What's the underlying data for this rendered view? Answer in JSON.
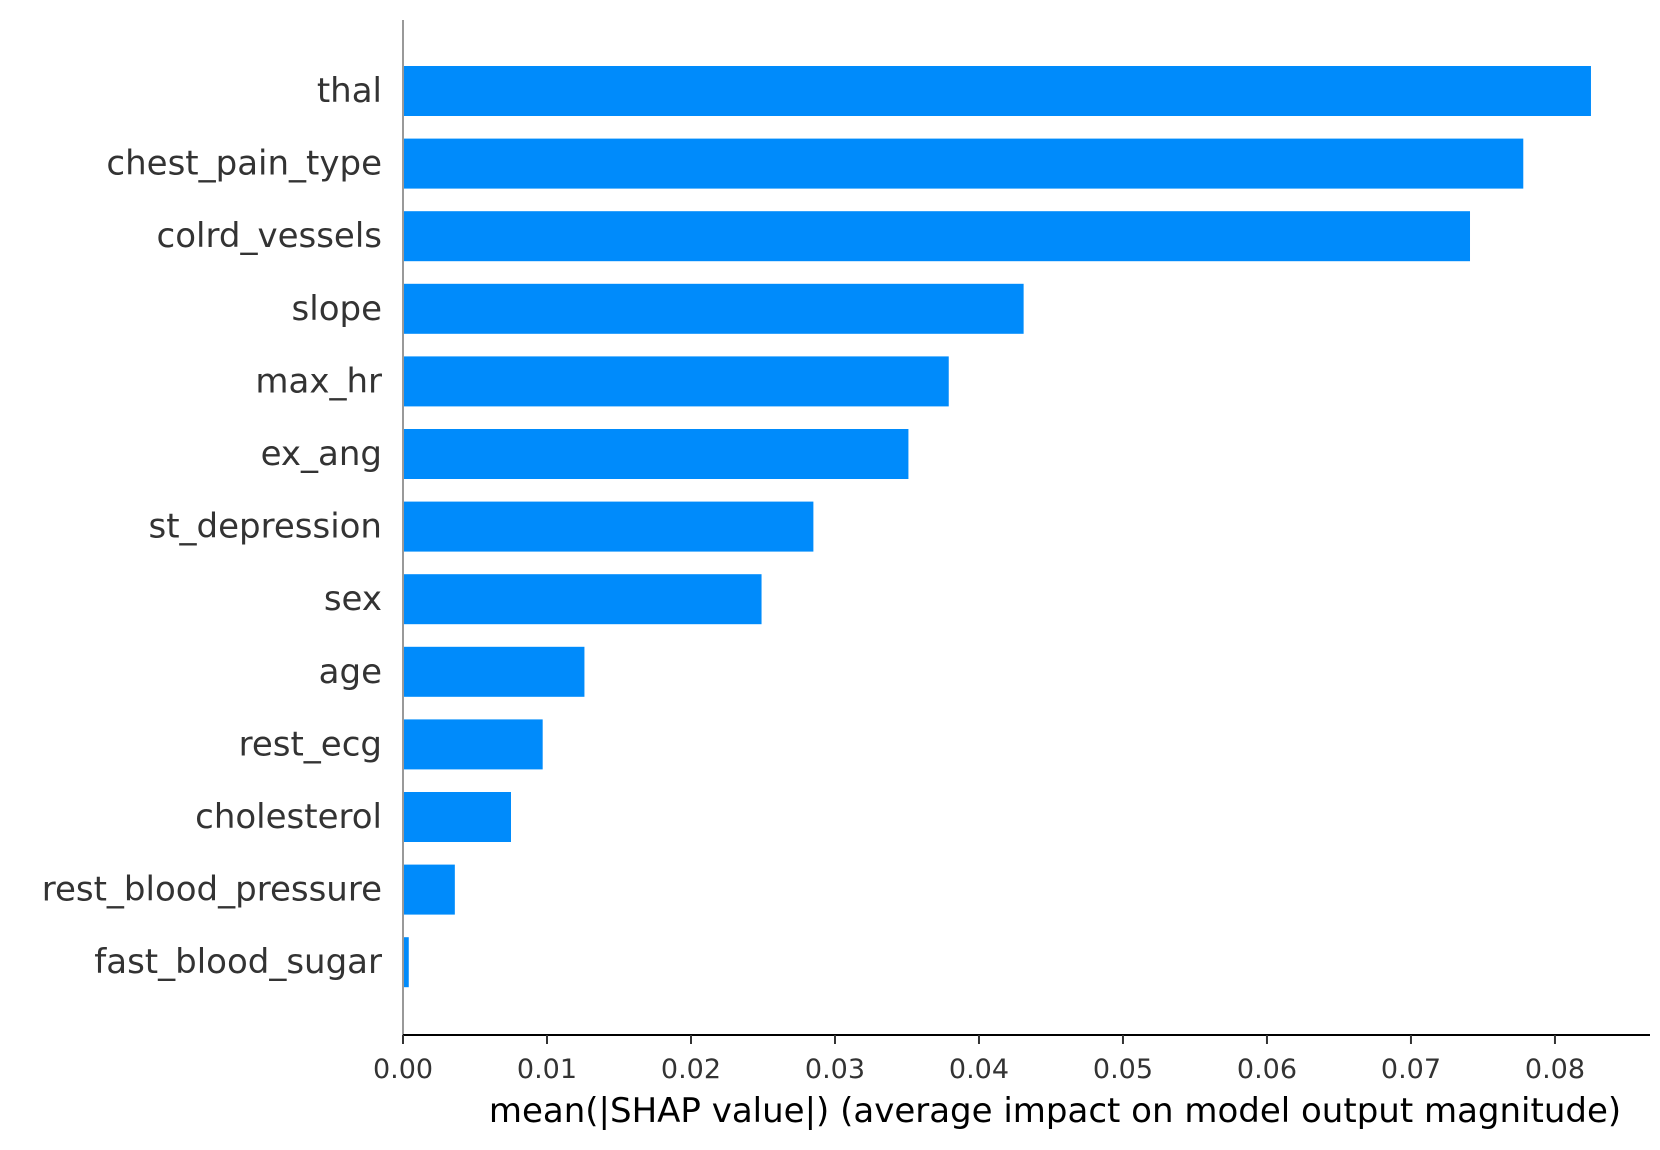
{
  "chart_data": {
    "type": "bar",
    "orientation": "horizontal",
    "categories": [
      "thal",
      "chest_pain_type",
      "colrd_vessels",
      "slope",
      "max_hr",
      "ex_ang",
      "st_depression",
      "sex",
      "age",
      "rest_ecg",
      "cholesterol",
      "rest_blood_pressure",
      "fast_blood_sugar"
    ],
    "values": [
      0.0825,
      0.0778,
      0.0741,
      0.0431,
      0.0379,
      0.0351,
      0.0285,
      0.0249,
      0.0126,
      0.0097,
      0.0075,
      0.0036,
      0.0004
    ],
    "title": "",
    "xlabel": "mean(|SHAP value|) (average impact on model output magnitude)",
    "ylabel": "",
    "xlim": [
      0,
      0.0866
    ],
    "xticks": [
      0.0,
      0.01,
      0.02,
      0.03,
      0.04,
      0.05,
      0.06,
      0.07,
      0.08
    ],
    "xtick_labels": [
      "0.00",
      "0.01",
      "0.02",
      "0.03",
      "0.04",
      "0.05",
      "0.06",
      "0.07",
      "0.08"
    ],
    "grid": false,
    "bar_color": "#008bfb",
    "text_color": "#333333",
    "axis_color": "#999999"
  }
}
